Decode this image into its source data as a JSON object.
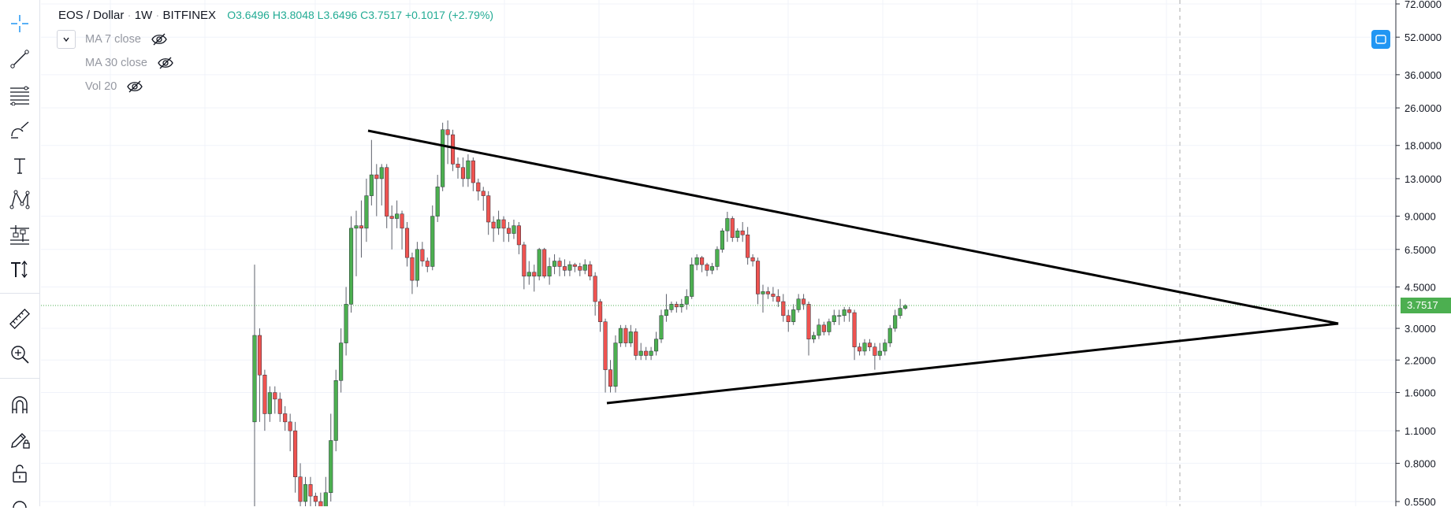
{
  "legend": {
    "symbol": "EOS / Dollar",
    "interval": "1W",
    "exchange": "BITFINEX",
    "ohlc": "O3.6496  H3.8048  L3.6496  C3.7517  +0.1017 (+2.79%)"
  },
  "indicators": [
    {
      "label": "MA 7 close"
    },
    {
      "label": "MA 30 close"
    },
    {
      "label": "Vol 20"
    }
  ],
  "toolbar": [
    {
      "icon": "crosshair-icon"
    },
    {
      "icon": "trend-line-icon"
    },
    {
      "icon": "fib-retracement-icon"
    },
    {
      "icon": "brush-icon"
    },
    {
      "icon": "text-icon"
    },
    {
      "icon": "pattern-icon"
    },
    {
      "icon": "prediction-icon"
    },
    {
      "icon": "text-tools-icon"
    },
    {
      "icon": "ruler-icon"
    },
    {
      "icon": "zoom-in-icon"
    },
    {
      "icon": "magnet-icon"
    },
    {
      "icon": "stay-in-drawing-mode-icon"
    },
    {
      "icon": "lock-icon"
    }
  ],
  "colors": {
    "up": "#4caf50",
    "down": "#ef5350",
    "last_price_line": "#4caf50",
    "axis_text": "#131722",
    "grid": "#f0f3fa",
    "trendline": "#000000",
    "accent": "#2196f3"
  },
  "chart_data": {
    "type": "candlestick",
    "scale": "log",
    "ylim": [
      0.5,
      72
    ],
    "y_ticks": [
      "72.0000",
      "52.0000",
      "36.0000",
      "26.0000",
      "18.0000",
      "13.0000",
      "9.0000",
      "6.5000",
      "4.5000",
      "3.0000",
      "2.2000",
      "1.6000",
      "1.1000",
      "0.8000",
      "0.5500"
    ],
    "y_tick_values": [
      72,
      52,
      36,
      26,
      18,
      13,
      9,
      6.5,
      4.5,
      3,
      2.2,
      1.6,
      1.1,
      0.8,
      0.55
    ],
    "last_price": "3.7517",
    "last_price_value": 3.7517,
    "candles": [
      [
        1.2,
        2.8,
        5.6,
        0.45
      ],
      [
        2.8,
        1.9,
        3.0,
        1.2
      ],
      [
        1.9,
        1.3,
        2.0,
        1.1
      ],
      [
        1.3,
        1.6,
        1.7,
        1.2
      ],
      [
        1.6,
        1.5,
        1.7,
        1.3
      ],
      [
        1.5,
        1.3,
        1.6,
        1.2
      ],
      [
        1.3,
        1.2,
        1.4,
        1.1
      ],
      [
        1.2,
        1.1,
        1.3,
        0.9
      ],
      [
        1.1,
        0.7,
        1.2,
        0.6
      ],
      [
        0.7,
        0.55,
        0.8,
        0.5
      ],
      [
        0.55,
        0.65,
        0.7,
        0.5
      ],
      [
        0.65,
        0.58,
        0.7,
        0.5
      ],
      [
        0.58,
        0.55,
        0.6,
        0.5
      ],
      [
        0.55,
        0.5,
        0.6,
        0.45
      ],
      [
        0.5,
        0.6,
        0.7,
        0.45
      ],
      [
        0.6,
        1.0,
        1.3,
        0.55
      ],
      [
        1.0,
        1.8,
        2.0,
        0.9
      ],
      [
        1.8,
        2.6,
        3.0,
        1.6
      ],
      [
        2.6,
        3.8,
        4.5,
        2.3
      ],
      [
        3.8,
        8.0,
        9.0,
        3.5
      ],
      [
        8.0,
        8.2,
        9.5,
        5.0
      ],
      [
        8.2,
        8.0,
        10.5,
        6.0
      ],
      [
        8.0,
        11.0,
        13.0,
        7.0
      ],
      [
        11.0,
        13.5,
        19.0,
        10.0
      ],
      [
        13.5,
        13.0,
        15.0,
        9.0
      ],
      [
        13.0,
        14.5,
        15.0,
        10.0
      ],
      [
        14.5,
        9.0,
        15.0,
        8.0
      ],
      [
        9.0,
        8.8,
        10.0,
        6.5
      ],
      [
        8.8,
        9.2,
        10.5,
        8.0
      ],
      [
        9.2,
        8.0,
        9.5,
        6.5
      ],
      [
        8.0,
        6.0,
        8.5,
        5.5
      ],
      [
        6.0,
        4.8,
        6.3,
        4.2
      ],
      [
        4.8,
        6.5,
        7.0,
        4.5
      ],
      [
        6.5,
        5.8,
        7.0,
        5.5
      ],
      [
        5.8,
        5.5,
        6.0,
        5.2
      ],
      [
        5.5,
        9.0,
        10.0,
        5.3
      ],
      [
        9.0,
        12.0,
        13.5,
        8.5
      ],
      [
        12.0,
        21.0,
        22.5,
        11.5
      ],
      [
        21.0,
        20.0,
        23.0,
        15.0
      ],
      [
        20.0,
        15.0,
        21.0,
        14.0
      ],
      [
        15.0,
        14.5,
        16.0,
        13.0
      ],
      [
        14.5,
        13.0,
        16.0,
        12.0
      ],
      [
        13.0,
        15.5,
        16.5,
        12.0
      ],
      [
        15.5,
        12.5,
        16.0,
        11.5
      ],
      [
        12.5,
        11.5,
        13.0,
        10.5
      ],
      [
        11.5,
        11.0,
        12.0,
        9.5
      ],
      [
        11.0,
        8.5,
        11.5,
        7.5
      ],
      [
        8.5,
        8.0,
        9.0,
        7.0
      ],
      [
        8.0,
        8.7,
        9.5,
        7.5
      ],
      [
        8.7,
        8.0,
        9.0,
        7.0
      ],
      [
        8.0,
        7.6,
        8.5,
        7.0
      ],
      [
        7.6,
        8.2,
        8.7,
        7.2
      ],
      [
        8.2,
        6.8,
        8.5,
        6.2
      ],
      [
        6.8,
        5.0,
        7.0,
        4.4
      ],
      [
        5.0,
        5.2,
        5.8,
        4.6
      ],
      [
        5.2,
        5.0,
        5.6,
        4.3
      ],
      [
        5.0,
        6.5,
        6.6,
        4.8
      ],
      [
        6.5,
        5.0,
        6.6,
        4.9
      ],
      [
        5.0,
        5.5,
        6.0,
        4.6
      ],
      [
        5.5,
        5.8,
        6.2,
        5.1
      ],
      [
        5.8,
        5.5,
        6.0,
        5.0
      ],
      [
        5.5,
        5.3,
        5.9,
        5.0
      ],
      [
        5.3,
        5.6,
        5.8,
        5.0
      ],
      [
        5.6,
        5.5,
        5.7,
        5.2
      ],
      [
        5.5,
        5.3,
        5.7,
        5.0
      ],
      [
        5.3,
        5.6,
        5.9,
        5.1
      ],
      [
        5.6,
        5.0,
        5.8,
        4.8
      ],
      [
        5.0,
        3.9,
        5.2,
        3.4
      ],
      [
        3.9,
        3.2,
        4.0,
        2.9
      ],
      [
        3.2,
        2.0,
        3.3,
        1.6
      ],
      [
        2.0,
        1.7,
        2.2,
        1.6
      ],
      [
        1.7,
        2.6,
        2.8,
        1.6
      ],
      [
        2.6,
        3.0,
        3.1,
        2.5
      ],
      [
        3.0,
        2.6,
        3.1,
        2.5
      ],
      [
        2.6,
        2.9,
        3.1,
        2.5
      ],
      [
        2.9,
        2.3,
        3.0,
        2.2
      ],
      [
        2.3,
        2.4,
        2.6,
        2.2
      ],
      [
        2.4,
        2.3,
        2.5,
        2.2
      ],
      [
        2.3,
        2.4,
        2.5,
        2.2
      ],
      [
        2.4,
        2.7,
        2.9,
        2.3
      ],
      [
        2.7,
        3.4,
        3.6,
        2.6
      ],
      [
        3.4,
        3.6,
        4.2,
        3.2
      ],
      [
        3.6,
        3.8,
        3.9,
        3.5
      ],
      [
        3.8,
        3.7,
        3.9,
        3.5
      ],
      [
        3.7,
        3.8,
        4.0,
        3.5
      ],
      [
        3.8,
        4.1,
        4.4,
        3.6
      ],
      [
        4.1,
        5.6,
        6.0,
        4.0
      ],
      [
        5.6,
        6.0,
        6.2,
        5.3
      ],
      [
        6.0,
        5.6,
        6.1,
        5.2
      ],
      [
        5.6,
        5.3,
        5.7,
        5.0
      ],
      [
        5.3,
        5.5,
        5.7,
        5.1
      ],
      [
        5.5,
        6.5,
        6.7,
        5.3
      ],
      [
        6.5,
        7.8,
        8.0,
        6.3
      ],
      [
        7.8,
        8.8,
        9.4,
        7.0
      ],
      [
        8.8,
        7.3,
        9.0,
        7.0
      ],
      [
        7.3,
        7.8,
        8.0,
        7.0
      ],
      [
        7.8,
        7.5,
        8.5,
        7.0
      ],
      [
        7.5,
        6.0,
        8.1,
        5.6
      ],
      [
        6.0,
        5.8,
        6.2,
        5.5
      ],
      [
        5.8,
        4.2,
        6.0,
        3.8
      ],
      [
        4.2,
        4.3,
        4.6,
        3.5
      ],
      [
        4.3,
        4.2,
        4.5,
        4.0
      ],
      [
        4.2,
        4.1,
        4.5,
        3.9
      ],
      [
        4.1,
        3.9,
        4.4,
        3.7
      ],
      [
        3.9,
        3.4,
        4.2,
        3.2
      ],
      [
        3.4,
        3.2,
        3.6,
        2.9
      ],
      [
        3.2,
        3.6,
        3.8,
        3.1
      ],
      [
        3.6,
        4.0,
        4.2,
        3.5
      ],
      [
        4.0,
        3.8,
        4.2,
        3.6
      ],
      [
        3.8,
        2.7,
        3.9,
        2.3
      ],
      [
        2.7,
        2.8,
        2.9,
        2.6
      ],
      [
        2.8,
        3.1,
        3.3,
        2.7
      ],
      [
        3.1,
        2.9,
        3.2,
        2.8
      ],
      [
        2.9,
        3.2,
        3.3,
        2.8
      ],
      [
        3.2,
        3.4,
        3.6,
        3.1
      ],
      [
        3.4,
        3.4,
        3.6,
        3.1
      ],
      [
        3.4,
        3.6,
        3.7,
        3.2
      ],
      [
        3.6,
        3.5,
        3.7,
        3.2
      ],
      [
        3.5,
        2.5,
        3.6,
        2.2
      ],
      [
        2.5,
        2.4,
        2.6,
        2.3
      ],
      [
        2.4,
        2.6,
        2.7,
        2.3
      ],
      [
        2.6,
        2.5,
        2.7,
        2.4
      ],
      [
        2.5,
        2.3,
        2.6,
        2.0
      ],
      [
        2.3,
        2.4,
        2.6,
        2.2
      ],
      [
        2.4,
        2.6,
        2.7,
        2.3
      ],
      [
        2.6,
        3.0,
        3.1,
        2.5
      ],
      [
        3.0,
        3.4,
        3.6,
        2.9
      ],
      [
        3.4,
        3.65,
        4.0,
        3.3
      ],
      [
        3.65,
        3.75,
        3.8,
        3.6
      ]
    ]
  }
}
